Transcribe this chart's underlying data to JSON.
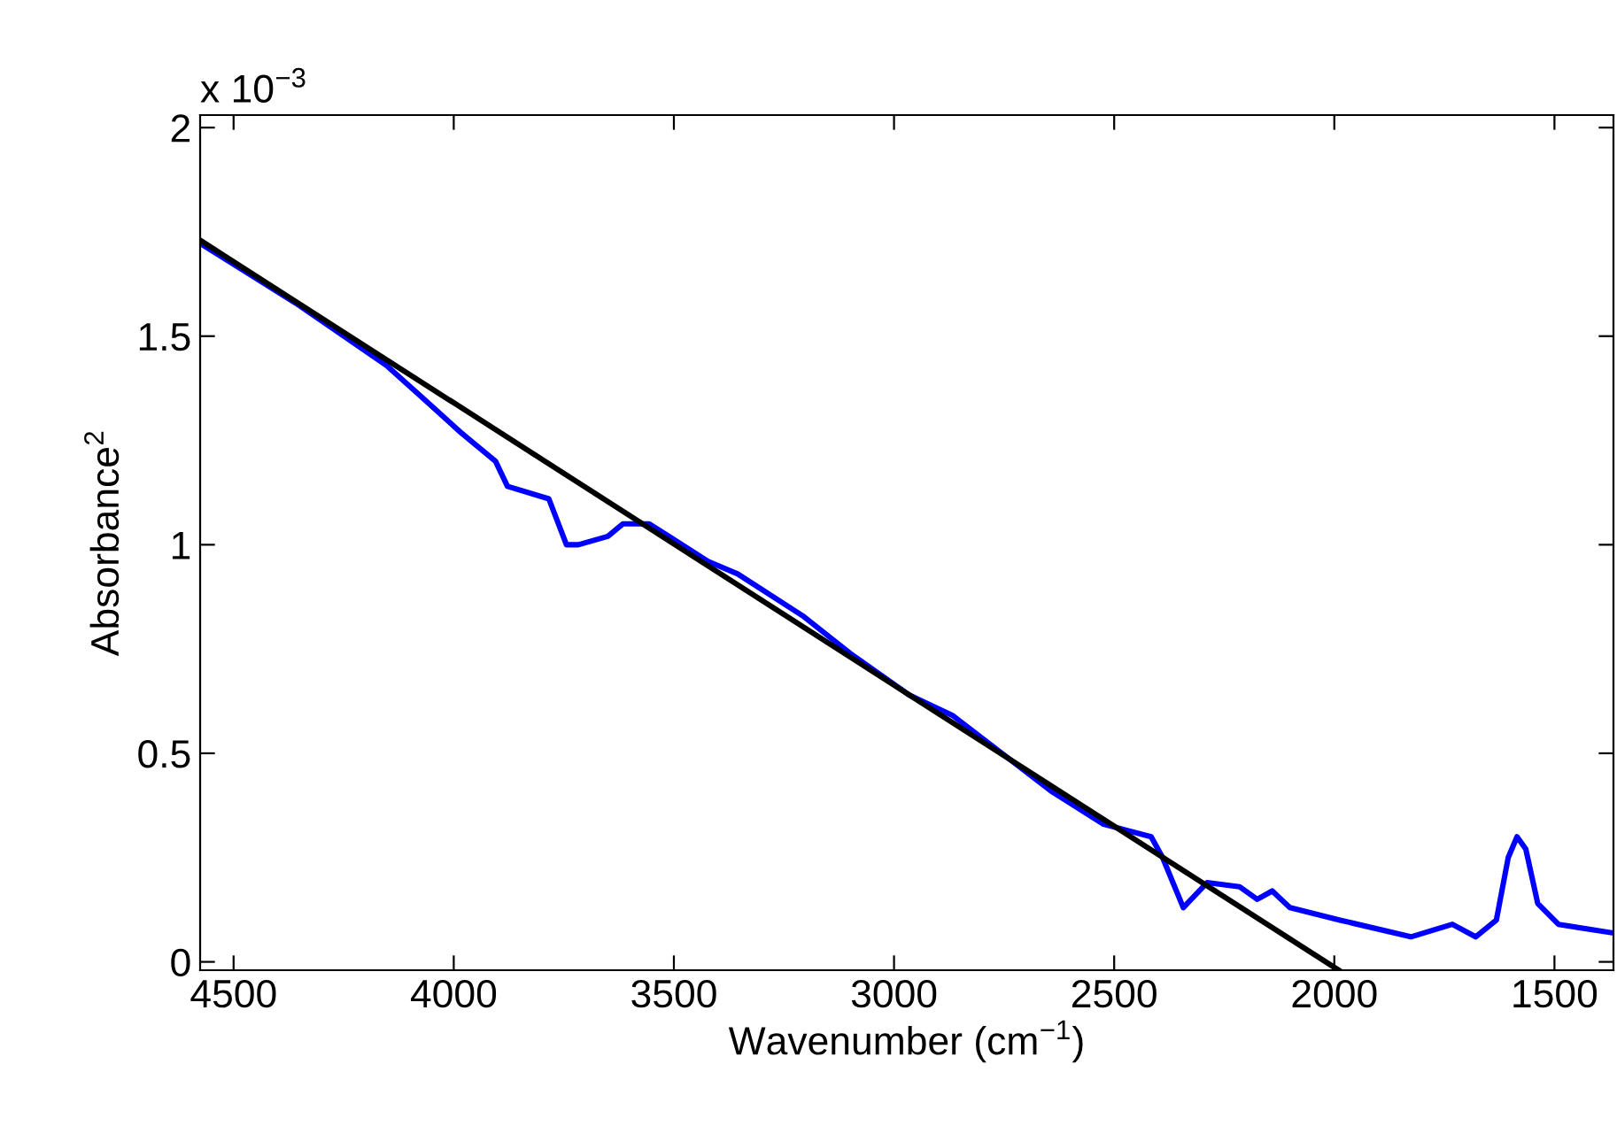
{
  "chart_data": {
    "type": "line",
    "xlabel": "Wavenumber (cm$^{−1}$)",
    "ylabel": "Absorbance$^{2}$",
    "annotations": [
      "x 10$^{−3}$"
    ],
    "xlim": [
      4576,
      1366
    ],
    "xticks": [
      4500,
      4000,
      3500,
      3000,
      2500,
      2000,
      1500
    ],
    "ylim": [
      -0.02,
      2.03
    ],
    "yticks": [
      0,
      0.5,
      1,
      1.5,
      2
    ],
    "grid": false,
    "legend": false,
    "series": [
      {
        "color": "#0000ff",
        "x": [
          4572,
          4360,
          4153,
          4079,
          3985,
          3905,
          3878,
          3784,
          3744,
          3717,
          3650,
          3616,
          3556,
          3422,
          3355,
          3208,
          3100,
          2966,
          2866,
          2644,
          2524,
          2416,
          2390,
          2343,
          2289,
          2215,
          2175,
          2141,
          2101,
          1987,
          1826,
          1732,
          1679,
          1632,
          1605,
          1585,
          1565,
          1538,
          1491,
          1371
        ],
        "values": [
          1.72,
          1.58,
          1.43,
          1.36,
          1.27,
          1.2,
          1.14,
          1.11,
          1.0,
          1.0,
          1.02,
          1.05,
          1.05,
          0.96,
          0.93,
          0.83,
          0.74,
          0.64,
          0.59,
          0.41,
          0.33,
          0.3,
          0.25,
          0.13,
          0.19,
          0.18,
          0.15,
          0.17,
          0.13,
          0.1,
          0.06,
          0.09,
          0.06,
          0.1,
          0.25,
          0.3,
          0.27,
          0.14,
          0.09,
          0.07
        ]
      },
      {
        "color": "#000000",
        "x": [
          4576,
          1990
        ],
        "values": [
          1.73,
          -0.02
        ]
      }
    ]
  }
}
